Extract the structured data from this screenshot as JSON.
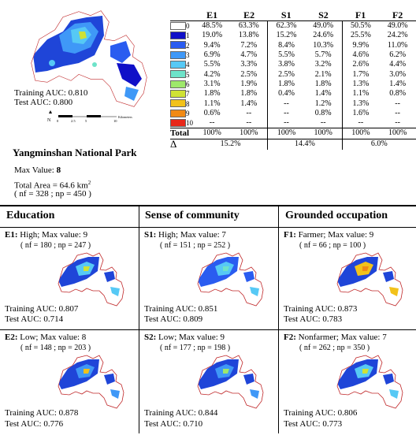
{
  "park": {
    "title": "Yangminshan National Park",
    "max_value_label": "Max Value:",
    "max_value": "8",
    "total_area_label": "Total Area = 64.6 km",
    "total_area_sup": "2",
    "counts": "( n",
    "counts_text": "( nf = 328 ; np = 450 )",
    "training_auc": "Training AUC: 0.810",
    "test_auc": "Test AUC: 0.800"
  },
  "legend_table": {
    "headers": [
      "E1",
      "E2",
      "S1",
      "S2",
      "F1",
      "F2"
    ],
    "class_colors": [
      "#ffffff",
      "#1010c8",
      "#2a5cf0",
      "#3f98f7",
      "#56c9f5",
      "#6ee3c9",
      "#9ee86b",
      "#cfe235",
      "#f2c21a",
      "#f18a15",
      "#e8281a"
    ],
    "rows": [
      {
        "label": "0",
        "values": [
          "48.5%",
          "63.3%",
          "62.3%",
          "49.0%",
          "50.5%",
          "49.0%"
        ]
      },
      {
        "label": "1",
        "values": [
          "19.0%",
          "13.8%",
          "15.2%",
          "24.6%",
          "25.5%",
          "24.2%"
        ]
      },
      {
        "label": "2",
        "values": [
          "9.4%",
          "7.2%",
          "8.4%",
          "10.3%",
          "9.9%",
          "11.0%"
        ]
      },
      {
        "label": "3",
        "values": [
          "6.9%",
          "4.7%",
          "5.5%",
          "5.7%",
          "4.6%",
          "6.2%"
        ]
      },
      {
        "label": "4",
        "values": [
          "5.5%",
          "3.3%",
          "3.8%",
          "3.2%",
          "2.6%",
          "4.4%"
        ]
      },
      {
        "label": "5",
        "values": [
          "4.2%",
          "2.5%",
          "2.5%",
          "2.1%",
          "1.7%",
          "3.0%"
        ]
      },
      {
        "label": "6",
        "values": [
          "3.1%",
          "1.9%",
          "1.8%",
          "1.8%",
          "1.3%",
          "1.4%"
        ]
      },
      {
        "label": "7",
        "values": [
          "1.8%",
          "1.8%",
          "0.4%",
          "1.4%",
          "1.1%",
          "0.8%"
        ]
      },
      {
        "label": "8",
        "values": [
          "1.1%",
          "1.4%",
          "--",
          "1.2%",
          "1.3%",
          "--"
        ]
      },
      {
        "label": "9",
        "values": [
          "0.6%",
          "--",
          "--",
          "0.8%",
          "1.6%",
          "--"
        ]
      },
      {
        "label": "10",
        "values": [
          "--",
          "--",
          "--",
          "--",
          "--",
          "--"
        ]
      }
    ],
    "total_label": "Total",
    "totals": [
      "100%",
      "100%",
      "100%",
      "100%",
      "100%",
      "100%"
    ],
    "delta_label": "Δ",
    "deltas": [
      "15.2%",
      "14.4%",
      "6.0%"
    ]
  },
  "columns": [
    {
      "header": "Education",
      "panels": [
        {
          "code": "E1:",
          "desc": " High; Max value: 9",
          "n": "( nf = 180 ; np = 247 )",
          "train": "Training AUC: 0.807",
          "test": "Test AUC: 0.714"
        },
        {
          "code": "E2:",
          "desc": " Low; Max value: 8",
          "n": "( nf = 148 ; np = 203 )",
          "train": "Training AUC: 0.878",
          "test": "Test AUC: 0.776"
        }
      ]
    },
    {
      "header": "Sense of community",
      "panels": [
        {
          "code": "S1:",
          "desc": " High; Max value: 7",
          "n": "( nf = 151 ; np = 252 )",
          "train": "Training AUC: 0.851",
          "test": "Test AUC: 0.809"
        },
        {
          "code": "S2:",
          "desc": " Low; Max value: 9",
          "n": "( nf = 177 ; np = 198 )",
          "train": "Training AUC: 0.844",
          "test": "Test AUC: 0.710"
        }
      ]
    },
    {
      "header": "Grounded occupation",
      "panels": [
        {
          "code": "F1:",
          "desc": " Farmer; Max value: 9",
          "n": "( nf = 66 ; np = 100 )",
          "train": "Training AUC: 0.873",
          "test": "Test AUC: 0.783"
        },
        {
          "code": "F2:",
          "desc": " Nonfarmer; Max value: 7",
          "n": "( nf = 262 ; np = 350 )",
          "train": "Training AUC: 0.806",
          "test": "Test AUC: 0.773"
        }
      ]
    }
  ],
  "scale_bar": {
    "ticks": [
      "0",
      "2.5",
      "5",
      "10"
    ],
    "unit": "Kilometers",
    "north": "N"
  }
}
